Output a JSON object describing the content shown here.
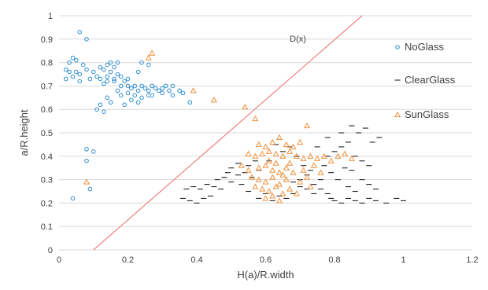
{
  "chart_data": {
    "type": "scatter",
    "title": "",
    "xlabel": "H(a)/R.width",
    "ylabel": "a/R.height",
    "xlim": [
      0,
      1.2
    ],
    "ylim": [
      0,
      1
    ],
    "x_ticks": [
      "0",
      "0.2",
      "0.4",
      "0.6",
      "0.8",
      "1",
      "1.2"
    ],
    "y_ticks": [
      "0",
      "0.1",
      "0.2",
      "0.3",
      "0.4",
      "0.5",
      "0.6",
      "0.7",
      "0.8",
      "0.9",
      "1"
    ],
    "grid": "horizontal",
    "legend_position": "right",
    "colors": {
      "NoGlass": "#2f8fd0",
      "ClearGlass": "#222222",
      "SunGlass": "#f0903a",
      "line": "#f08080"
    },
    "line": {
      "label": "D(x)",
      "points": [
        [
          0.1,
          0.0
        ],
        [
          0.88,
          1.0
        ]
      ]
    },
    "series": [
      {
        "name": "NoGlass",
        "marker": "circle",
        "points": [
          [
            0.06,
            0.93
          ],
          [
            0.08,
            0.9
          ],
          [
            0.04,
            0.82
          ],
          [
            0.05,
            0.81
          ],
          [
            0.03,
            0.8
          ],
          [
            0.07,
            0.79
          ],
          [
            0.02,
            0.77
          ],
          [
            0.03,
            0.76
          ],
          [
            0.05,
            0.76
          ],
          [
            0.06,
            0.75
          ],
          [
            0.08,
            0.77
          ],
          [
            0.1,
            0.76
          ],
          [
            0.12,
            0.78
          ],
          [
            0.13,
            0.77
          ],
          [
            0.14,
            0.79
          ],
          [
            0.15,
            0.76
          ],
          [
            0.16,
            0.78
          ],
          [
            0.17,
            0.75
          ],
          [
            0.11,
            0.74
          ],
          [
            0.12,
            0.73
          ],
          [
            0.14,
            0.72
          ],
          [
            0.16,
            0.73
          ],
          [
            0.18,
            0.74
          ],
          [
            0.13,
            0.71
          ],
          [
            0.02,
            0.73
          ],
          [
            0.04,
            0.74
          ],
          [
            0.06,
            0.72
          ],
          [
            0.09,
            0.73
          ],
          [
            0.15,
            0.8
          ],
          [
            0.17,
            0.8
          ],
          [
            0.19,
            0.72
          ],
          [
            0.2,
            0.7
          ],
          [
            0.21,
            0.69
          ],
          [
            0.22,
            0.7
          ],
          [
            0.23,
            0.68
          ],
          [
            0.24,
            0.7
          ],
          [
            0.25,
            0.69
          ],
          [
            0.26,
            0.68
          ],
          [
            0.27,
            0.7
          ],
          [
            0.28,
            0.69
          ],
          [
            0.29,
            0.68
          ],
          [
            0.3,
            0.69
          ],
          [
            0.31,
            0.7
          ],
          [
            0.32,
            0.68
          ],
          [
            0.33,
            0.7
          ],
          [
            0.35,
            0.68
          ],
          [
            0.36,
            0.67
          ],
          [
            0.38,
            0.63
          ],
          [
            0.18,
            0.66
          ],
          [
            0.2,
            0.67
          ],
          [
            0.22,
            0.66
          ],
          [
            0.24,
            0.65
          ],
          [
            0.26,
            0.66
          ],
          [
            0.21,
            0.64
          ],
          [
            0.23,
            0.63
          ],
          [
            0.19,
            0.62
          ],
          [
            0.14,
            0.65
          ],
          [
            0.12,
            0.62
          ],
          [
            0.11,
            0.6
          ],
          [
            0.13,
            0.59
          ],
          [
            0.15,
            0.63
          ],
          [
            0.17,
            0.68
          ],
          [
            0.2,
            0.73
          ],
          [
            0.23,
            0.76
          ],
          [
            0.24,
            0.8
          ],
          [
            0.26,
            0.79
          ],
          [
            0.08,
            0.43
          ],
          [
            0.1,
            0.42
          ],
          [
            0.08,
            0.38
          ],
          [
            0.09,
            0.26
          ],
          [
            0.04,
            0.22
          ],
          [
            0.16,
            0.72
          ],
          [
            0.14,
            0.74
          ],
          [
            0.18,
            0.7
          ],
          [
            0.27,
            0.66
          ],
          [
            0.3,
            0.67
          ],
          [
            0.33,
            0.66
          ]
        ]
      },
      {
        "name": "ClearGlass",
        "marker": "dash",
        "points": [
          [
            0.36,
            0.22
          ],
          [
            0.38,
            0.21
          ],
          [
            0.4,
            0.2
          ],
          [
            0.42,
            0.22
          ],
          [
            0.44,
            0.23
          ],
          [
            0.37,
            0.26
          ],
          [
            0.39,
            0.27
          ],
          [
            0.41,
            0.26
          ],
          [
            0.43,
            0.28
          ],
          [
            0.45,
            0.27
          ],
          [
            0.47,
            0.26
          ],
          [
            0.46,
            0.3
          ],
          [
            0.48,
            0.31
          ],
          [
            0.5,
            0.29
          ],
          [
            0.52,
            0.32
          ],
          [
            0.54,
            0.33
          ],
          [
            0.56,
            0.31
          ],
          [
            0.58,
            0.34
          ],
          [
            0.5,
            0.35
          ],
          [
            0.52,
            0.37
          ],
          [
            0.55,
            0.36
          ],
          [
            0.57,
            0.38
          ],
          [
            0.49,
            0.33
          ],
          [
            0.53,
            0.28
          ],
          [
            0.55,
            0.25
          ],
          [
            0.58,
            0.22
          ],
          [
            0.6,
            0.24
          ],
          [
            0.62,
            0.21
          ],
          [
            0.64,
            0.23
          ],
          [
            0.66,
            0.22
          ],
          [
            0.68,
            0.24
          ],
          [
            0.7,
            0.3
          ],
          [
            0.72,
            0.32
          ],
          [
            0.74,
            0.28
          ],
          [
            0.76,
            0.26
          ],
          [
            0.78,
            0.24
          ],
          [
            0.79,
            0.22
          ],
          [
            0.8,
            0.21
          ],
          [
            0.82,
            0.2
          ],
          [
            0.84,
            0.22
          ],
          [
            0.86,
            0.21
          ],
          [
            0.88,
            0.2
          ],
          [
            0.9,
            0.22
          ],
          [
            0.92,
            0.21
          ],
          [
            0.95,
            0.2
          ],
          [
            0.98,
            0.22
          ],
          [
            1.0,
            0.21
          ],
          [
            0.78,
            0.4
          ],
          [
            0.8,
            0.42
          ],
          [
            0.82,
            0.44
          ],
          [
            0.84,
            0.46
          ],
          [
            0.86,
            0.4
          ],
          [
            0.88,
            0.38
          ],
          [
            0.9,
            0.36
          ],
          [
            0.85,
            0.34
          ],
          [
            0.83,
            0.35
          ],
          [
            0.87,
            0.5
          ],
          [
            0.89,
            0.52
          ],
          [
            0.82,
            0.5
          ],
          [
            0.78,
            0.48
          ],
          [
            0.75,
            0.44
          ],
          [
            0.77,
            0.36
          ],
          [
            0.73,
            0.34
          ],
          [
            0.71,
            0.36
          ],
          [
            0.69,
            0.4
          ],
          [
            0.67,
            0.44
          ],
          [
            0.65,
            0.42
          ],
          [
            0.63,
            0.45
          ],
          [
            0.61,
            0.38
          ],
          [
            0.88,
            0.3
          ],
          [
            0.9,
            0.28
          ],
          [
            0.92,
            0.26
          ],
          [
            0.86,
            0.25
          ],
          [
            0.84,
            0.27
          ],
          [
            0.81,
            0.3
          ],
          [
            0.79,
            0.33
          ],
          [
            0.76,
            0.3
          ],
          [
            0.74,
            0.24
          ],
          [
            0.72,
            0.26
          ],
          [
            0.7,
            0.27
          ],
          [
            0.68,
            0.29
          ],
          [
            0.91,
            0.46
          ],
          [
            0.93,
            0.48
          ],
          [
            0.85,
            0.53
          ]
        ]
      },
      {
        "name": "SunGlass",
        "marker": "triangle",
        "points": [
          [
            0.27,
            0.84
          ],
          [
            0.26,
            0.82
          ],
          [
            0.39,
            0.68
          ],
          [
            0.45,
            0.64
          ],
          [
            0.54,
            0.61
          ],
          [
            0.57,
            0.56
          ],
          [
            0.58,
            0.45
          ],
          [
            0.6,
            0.44
          ],
          [
            0.62,
            0.46
          ],
          [
            0.64,
            0.48
          ],
          [
            0.66,
            0.45
          ],
          [
            0.68,
            0.44
          ],
          [
            0.7,
            0.46
          ],
          [
            0.72,
            0.53
          ],
          [
            0.55,
            0.41
          ],
          [
            0.57,
            0.4
          ],
          [
            0.59,
            0.41
          ],
          [
            0.61,
            0.42
          ],
          [
            0.63,
            0.41
          ],
          [
            0.65,
            0.4
          ],
          [
            0.67,
            0.42
          ],
          [
            0.69,
            0.4
          ],
          [
            0.71,
            0.39
          ],
          [
            0.73,
            0.4
          ],
          [
            0.75,
            0.39
          ],
          [
            0.77,
            0.4
          ],
          [
            0.79,
            0.38
          ],
          [
            0.81,
            0.4
          ],
          [
            0.83,
            0.41
          ],
          [
            0.85,
            0.39
          ],
          [
            0.58,
            0.35
          ],
          [
            0.6,
            0.36
          ],
          [
            0.62,
            0.34
          ],
          [
            0.64,
            0.33
          ],
          [
            0.66,
            0.35
          ],
          [
            0.68,
            0.33
          ],
          [
            0.56,
            0.31
          ],
          [
            0.58,
            0.3
          ],
          [
            0.6,
            0.29
          ],
          [
            0.62,
            0.31
          ],
          [
            0.64,
            0.28
          ],
          [
            0.66,
            0.3
          ],
          [
            0.57,
            0.27
          ],
          [
            0.59,
            0.26
          ],
          [
            0.61,
            0.25
          ],
          [
            0.63,
            0.27
          ],
          [
            0.65,
            0.24
          ],
          [
            0.67,
            0.26
          ],
          [
            0.6,
            0.22
          ],
          [
            0.62,
            0.23
          ],
          [
            0.64,
            0.21
          ],
          [
            0.7,
            0.29
          ],
          [
            0.72,
            0.31
          ],
          [
            0.69,
            0.24
          ],
          [
            0.73,
            0.27
          ],
          [
            0.55,
            0.34
          ],
          [
            0.53,
            0.36
          ],
          [
            0.71,
            0.34
          ],
          [
            0.74,
            0.36
          ],
          [
            0.76,
            0.33
          ],
          [
            0.08,
            0.29
          ],
          [
            0.61,
            0.38
          ],
          [
            0.63,
            0.37
          ],
          [
            0.65,
            0.32
          ],
          [
            0.67,
            0.37
          ]
        ]
      }
    ]
  }
}
